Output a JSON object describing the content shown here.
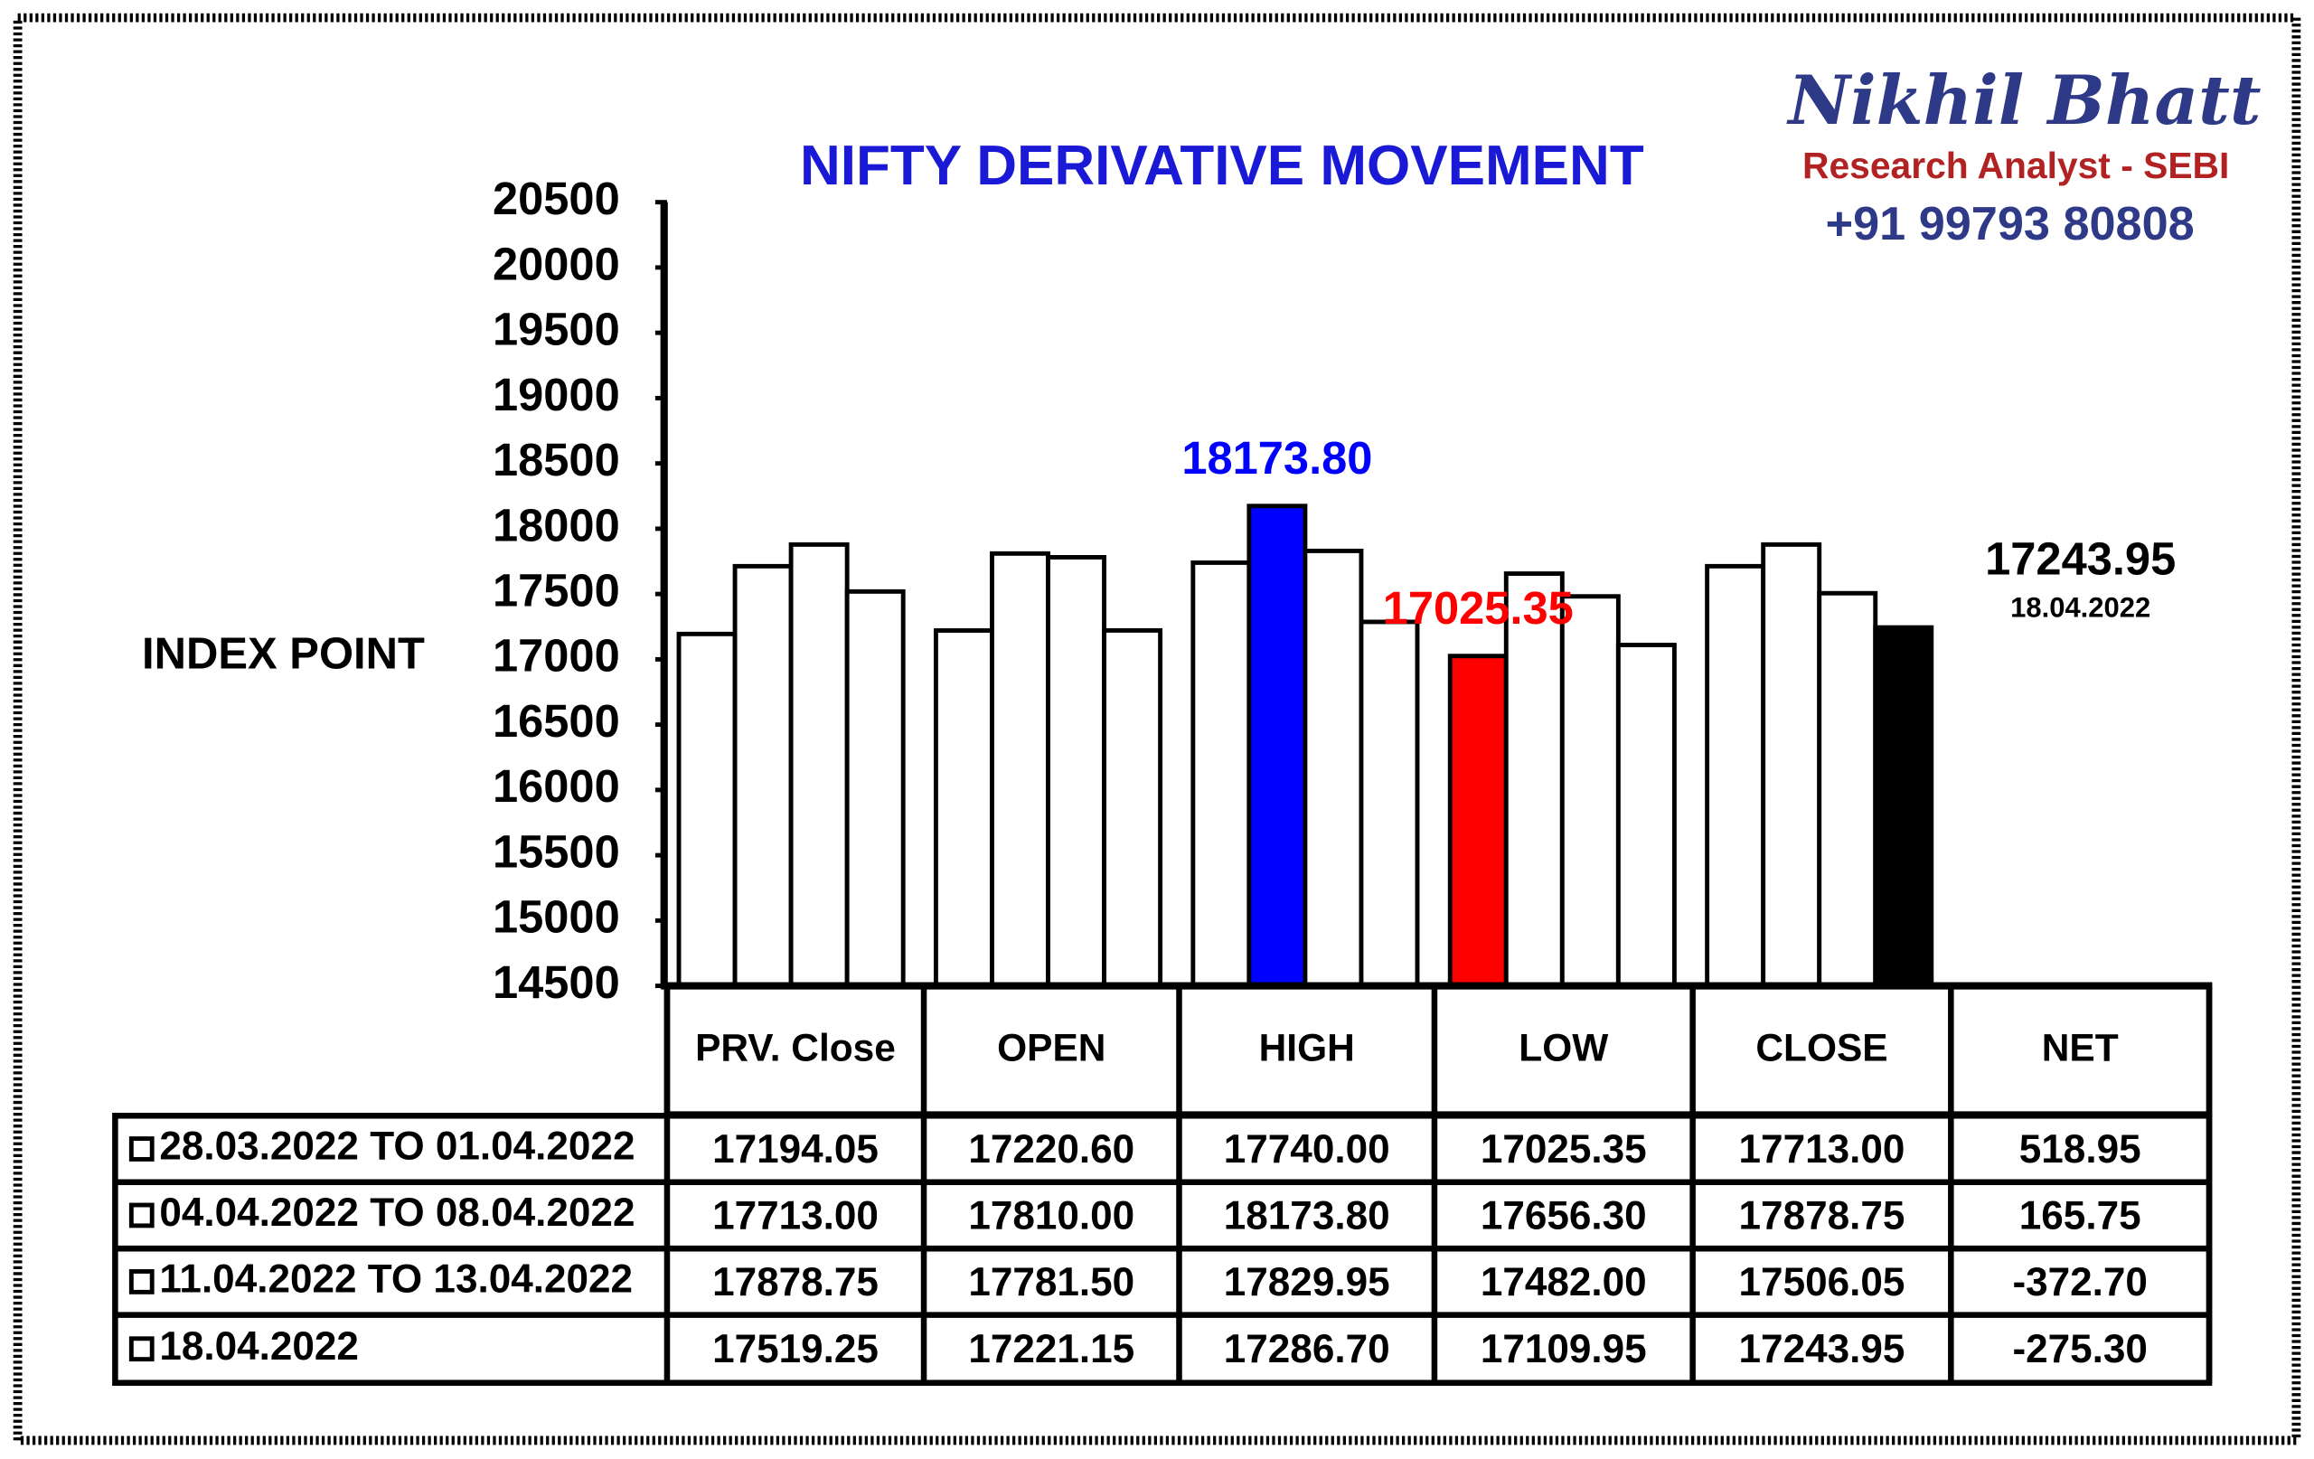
{
  "brand": {
    "name": "Nikhil Bhatt",
    "role": "Research Analyst - SEBI",
    "phone": "+91 99793 80808"
  },
  "chart_data": {
    "type": "bar",
    "title": "NIFTY DERIVATIVE MOVEMENT",
    "y_label": "INDEX POINT",
    "categories": [
      "PRV. Close",
      "OPEN",
      "HIGH",
      "LOW",
      "CLOSE"
    ],
    "ylim": [
      14500,
      20500
    ],
    "yticks": [
      14500,
      15000,
      15500,
      16000,
      16500,
      17000,
      17500,
      18000,
      18500,
      19000,
      19500,
      20000,
      20500
    ],
    "color": "#ffffff",
    "series": [
      {
        "name": "28.03.2022 TO 01.04.2022",
        "values": [
          17194.05,
          17220.6,
          17740,
          17025.35,
          17713
        ],
        "value_labels": [
          "17194.05",
          "17220.60",
          "17740.00",
          "17025.35",
          "17713.00"
        ]
      },
      {
        "name": "04.04.2022 TO 08.04.2022",
        "values": [
          17713,
          17810,
          18173.8,
          17656.3,
          17878.75
        ],
        "value_labels": [
          "17713.00",
          "17810.00",
          "18173.80",
          "17656.30",
          "17878.75"
        ]
      },
      {
        "name": "11.04.2022 TO 13.04.2022",
        "values": [
          17878.75,
          17781.5,
          17829.95,
          17482,
          17506.05
        ],
        "value_labels": [
          "17878.75",
          "17781.50",
          "17829.95",
          "17482.00",
          "17506.05"
        ]
      },
      {
        "name": "18.04.2022",
        "values": [
          17519.25,
          17221.15,
          17286.7,
          17109.95,
          17243.95
        ],
        "value_labels": [
          "17519.25",
          "17221.15",
          "17286.70",
          "17109.95",
          "17243.95"
        ]
      }
    ],
    "net": {
      "label": "NET",
      "values": [
        518.95,
        165.75,
        -372.7,
        -275.3
      ],
      "value_labels": [
        "518.95",
        "165.75",
        "-372.70",
        "-275.30"
      ]
    },
    "highlights": [
      {
        "series": 1,
        "category": 2,
        "color": "#0000ff",
        "text": "18173.80"
      },
      {
        "series": 0,
        "category": 3,
        "color": "#ff0000",
        "text": "17025.35"
      },
      {
        "series": 3,
        "category": 4,
        "color": "#000000",
        "text": "17243.95",
        "subtext": "18.04.2022"
      }
    ]
  }
}
